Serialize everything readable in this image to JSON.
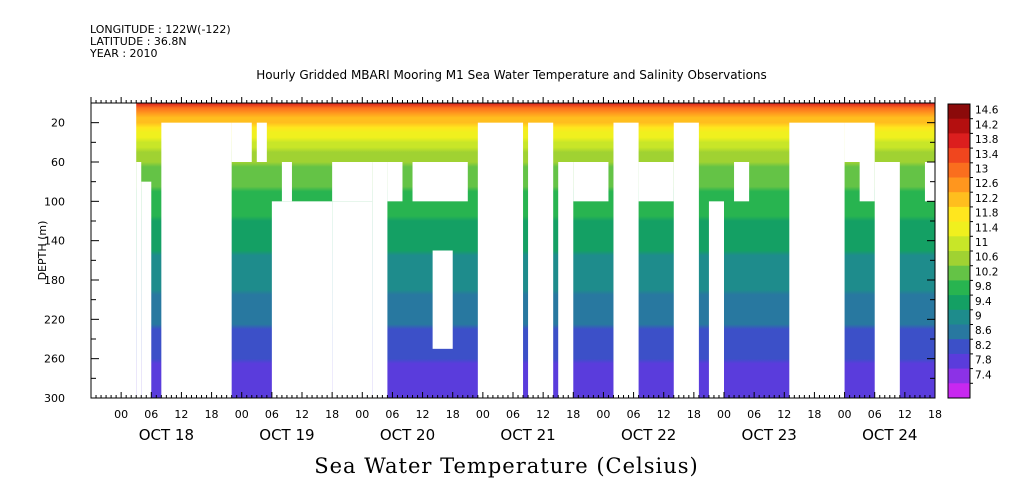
{
  "header": {
    "longitude": "LONGITUDE : 122W(-122)",
    "latitude": "LATITUDE : 36.8N",
    "year": "YEAR : 2010"
  },
  "chart_data": {
    "type": "heatmap",
    "title": "Hourly Gridded MBARI Mooring M1 Sea Water Temperature and Salinity Observations",
    "footer": "Sea Water Temperature (Celsius)",
    "ylabel": "DEPTH (m)",
    "ylim": [
      0,
      300
    ],
    "y_inverted": true,
    "yticks": [
      20,
      60,
      100,
      140,
      180,
      220,
      260,
      300
    ],
    "x_hour_range": [
      -6,
      162
    ],
    "x_hour_labels": [
      "00",
      "06",
      "12",
      "18",
      "00",
      "06",
      "12",
      "18",
      "00",
      "06",
      "12",
      "18",
      "00",
      "06",
      "12",
      "18",
      "00",
      "06",
      "12",
      "18",
      "00",
      "06",
      "12",
      "18",
      "00",
      "06",
      "12",
      "18"
    ],
    "x_day_labels": [
      "OCT 18",
      "OCT 19",
      "OCT 20",
      "OCT 21",
      "OCT 22",
      "OCT 23",
      "OCT 24"
    ],
    "colorbar": {
      "levels": [
        "14.6",
        "14.2",
        "13.8",
        "13.4",
        "13",
        "12.6",
        "12.2",
        "11.8",
        "11.4",
        "11",
        "10.6",
        "10.2",
        "9.8",
        "9.4",
        "9",
        "8.6",
        "8.2",
        "7.8",
        "7.4"
      ],
      "colors": [
        "#8b0a0a",
        "#b40f0f",
        "#dc1e1e",
        "#f0461e",
        "#fa6e1e",
        "#ff961e",
        "#ffbe1e",
        "#ffe61e",
        "#f0f01e",
        "#c8e628",
        "#a0d232",
        "#64c346",
        "#28b450",
        "#14a064",
        "#1e8c8c",
        "#2878a0",
        "#3c50c8",
        "#5a3cdc",
        "#8c32e6",
        "#c828f0"
      ]
    },
    "profile_surface_c": 14.0,
    "profile_bottom_c": 7.8,
    "missing_data_blocks_hours": [
      {
        "t0": -6,
        "t1": 3,
        "d0": 0,
        "d1": 300
      },
      {
        "t0": 3,
        "t1": 4,
        "d0": 60,
        "d1": 300
      },
      {
        "t0": 4,
        "t1": 6,
        "d0": 80,
        "d1": 300
      },
      {
        "t0": 8,
        "t1": 22,
        "d0": 20,
        "d1": 300
      },
      {
        "t0": 22,
        "t1": 26,
        "d0": 20,
        "d1": 60
      },
      {
        "t0": 27,
        "t1": 29,
        "d0": 20,
        "d1": 60
      },
      {
        "t0": 32,
        "t1": 34,
        "d0": 60,
        "d1": 100
      },
      {
        "t0": 30,
        "t1": 42,
        "d0": 100,
        "d1": 300
      },
      {
        "t0": 42,
        "t1": 50,
        "d0": 60,
        "d1": 100
      },
      {
        "t0": 42,
        "t1": 50,
        "d0": 100,
        "d1": 300
      },
      {
        "t0": 50,
        "t1": 53,
        "d0": 60,
        "d1": 300
      },
      {
        "t0": 53,
        "t1": 56,
        "d0": 60,
        "d1": 100
      },
      {
        "t0": 58,
        "t1": 69,
        "d0": 60,
        "d1": 100
      },
      {
        "t0": 62,
        "t1": 66,
        "d0": 150,
        "d1": 250
      },
      {
        "t0": 71,
        "t1": 80,
        "d0": 20,
        "d1": 300
      },
      {
        "t0": 81,
        "t1": 86,
        "d0": 20,
        "d1": 300
      },
      {
        "t0": 87,
        "t1": 90,
        "d0": 60,
        "d1": 300
      },
      {
        "t0": 90,
        "t1": 97,
        "d0": 60,
        "d1": 100
      },
      {
        "t0": 98,
        "t1": 103,
        "d0": 20,
        "d1": 300
      },
      {
        "t0": 103,
        "t1": 110,
        "d0": 60,
        "d1": 100
      },
      {
        "t0": 110,
        "t1": 115,
        "d0": 20,
        "d1": 300
      },
      {
        "t0": 117,
        "t1": 120,
        "d0": 100,
        "d1": 300
      },
      {
        "t0": 122,
        "t1": 125,
        "d0": 60,
        "d1": 100
      },
      {
        "t0": 133,
        "t1": 144,
        "d0": 20,
        "d1": 300
      },
      {
        "t0": 144,
        "t1": 150,
        "d0": 20,
        "d1": 60
      },
      {
        "t0": 147,
        "t1": 150,
        "d0": 60,
        "d1": 100
      },
      {
        "t0": 150,
        "t1": 155,
        "d0": 60,
        "d1": 300
      },
      {
        "t0": 160,
        "t1": 162,
        "d0": 60,
        "d1": 100
      }
    ]
  }
}
